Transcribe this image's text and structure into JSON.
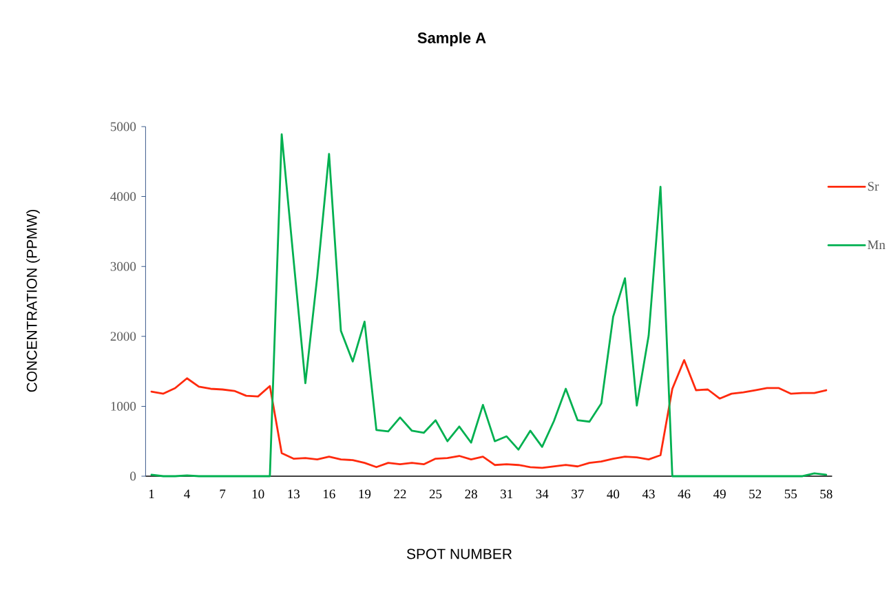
{
  "chart_data": {
    "type": "line",
    "title": "Sample A",
    "xlabel": "SPOT NUMBER",
    "ylabel": "CONCENTRATION (PPMW)",
    "categories": [
      "1",
      null,
      null,
      "4",
      null,
      null,
      "7",
      null,
      null,
      "10",
      null,
      null,
      "13",
      null,
      null,
      "16",
      null,
      null,
      "19",
      null,
      null,
      "22",
      null,
      null,
      "25",
      null,
      null,
      "28",
      null,
      null,
      "31",
      null,
      null,
      "34",
      null,
      null,
      "37",
      null,
      null,
      "40",
      null,
      null,
      "43",
      null,
      null,
      "46",
      null,
      null,
      "49",
      null,
      null,
      "52",
      null,
      null,
      "55",
      null,
      null,
      "58"
    ],
    "series": [
      {
        "name": "Sr",
        "color": "#ff2a0d",
        "values": [
          1210,
          1180,
          1260,
          1400,
          1280,
          1250,
          1240,
          1220,
          1150,
          1140,
          1290,
          330,
          250,
          260,
          240,
          280,
          240,
          230,
          190,
          130,
          190,
          170,
          190,
          170,
          250,
          260,
          290,
          240,
          280,
          160,
          170,
          160,
          130,
          120,
          140,
          160,
          140,
          190,
          210,
          250,
          280,
          270,
          240,
          300,
          1250,
          1660,
          1230,
          1240,
          1110,
          1180,
          1200,
          1230,
          1260,
          1260,
          1180,
          1190,
          1190,
          1230
        ]
      },
      {
        "name": "Mn",
        "color": "#00b050",
        "values": [
          20,
          0,
          0,
          10,
          0,
          0,
          0,
          0,
          0,
          0,
          0,
          4890,
          3100,
          1330,
          2850,
          4610,
          2080,
          1640,
          2210,
          660,
          640,
          840,
          650,
          620,
          800,
          500,
          710,
          480,
          1020,
          500,
          570,
          380,
          650,
          420,
          790,
          1250,
          800,
          780,
          1040,
          2280,
          2830,
          1010,
          2010,
          4140,
          0,
          0,
          0,
          0,
          0,
          0,
          0,
          0,
          0,
          0,
          0,
          0,
          40,
          20
        ]
      }
    ],
    "ylim": [
      0,
      5000
    ],
    "yticks": [
      0,
      1000,
      2000,
      3000,
      4000,
      5000
    ],
    "legend": "right",
    "marker": "none"
  }
}
